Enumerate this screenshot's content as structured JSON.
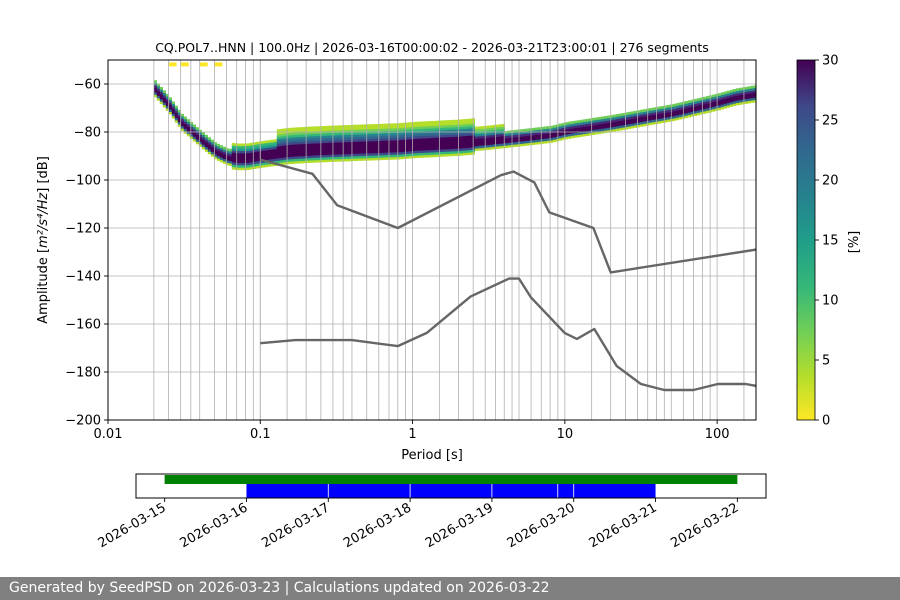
{
  "chart_data": {
    "psd": {
      "type": "heatmap",
      "title": "CQ.POL7..HNN | 100.0Hz | 2026-03-16T00:00:02 - 2026-03-21T23:00:01 | 276 segments",
      "xlabel": "Period [s]",
      "ylabel_prefix": "Amplitude [",
      "ylabel_unit": "m²/s⁴/Hz",
      "ylabel_suffix": "] [dB]",
      "xscale": "log",
      "xlim": [
        0.01,
        180
      ],
      "ylim": [
        -200,
        -50
      ],
      "x_ticks": [
        0.01,
        0.1,
        1,
        10,
        100
      ],
      "x_tick_labels": [
        "0.01",
        "0.1",
        "1",
        "10",
        "100"
      ],
      "y_ticks": [
        -200,
        -180,
        -160,
        -140,
        -120,
        -100,
        -80,
        -60
      ],
      "y_tick_labels": [
        "−200",
        "−180",
        "−160",
        "−140",
        "−120",
        "−100",
        "−80",
        "−60"
      ],
      "colorbar": {
        "label": "[%]",
        "range": [
          0,
          30
        ],
        "ticks": [
          0,
          5,
          10,
          15,
          20,
          25,
          30
        ],
        "tick_labels": [
          "0",
          "5",
          "10",
          "15",
          "20",
          "25",
          "30"
        ],
        "colors": [
          "#fde725",
          "#b5de2b",
          "#6ece58",
          "#35b779",
          "#1f9e89",
          "#26828e",
          "#31688e",
          "#3e4989",
          "#482878",
          "#440154"
        ]
      },
      "mode_curve": [
        [
          0.02,
          -63
        ],
        [
          0.025,
          -70
        ],
        [
          0.03,
          -77
        ],
        [
          0.04,
          -84
        ],
        [
          0.05,
          -89
        ],
        [
          0.06,
          -91.5
        ],
        [
          0.07,
          -92
        ],
        [
          0.08,
          -92
        ],
        [
          0.1,
          -91
        ],
        [
          0.15,
          -89.5
        ],
        [
          0.2,
          -89
        ],
        [
          0.3,
          -88.5
        ],
        [
          0.5,
          -88
        ],
        [
          0.8,
          -87.5
        ],
        [
          1,
          -87
        ],
        [
          2,
          -86
        ],
        [
          3,
          -85
        ],
        [
          5,
          -83.5
        ],
        [
          8,
          -82
        ],
        [
          10,
          -80.5
        ],
        [
          20,
          -77.5
        ],
        [
          30,
          -75.5
        ],
        [
          50,
          -73
        ],
        [
          80,
          -70
        ],
        [
          100,
          -68.5
        ],
        [
          130,
          -66.5
        ],
        [
          180,
          -65
        ]
      ],
      "nhnm": [
        [
          0.1,
          -91.5
        ],
        [
          0.22,
          -97.4
        ],
        [
          0.32,
          -110.5
        ],
        [
          0.8,
          -120
        ],
        [
          3.8,
          -98
        ],
        [
          4.6,
          -96.5
        ],
        [
          6.3,
          -101
        ],
        [
          7.9,
          -113.5
        ],
        [
          15.4,
          -120
        ],
        [
          20,
          -138.5
        ],
        [
          180,
          -129
        ]
      ],
      "nlnm": [
        [
          0.1,
          -168
        ],
        [
          0.17,
          -166.7
        ],
        [
          0.4,
          -166.7
        ],
        [
          0.8,
          -169.2
        ],
        [
          1.24,
          -163.7
        ],
        [
          2.4,
          -148.6
        ],
        [
          4.3,
          -141.1
        ],
        [
          5,
          -141.1
        ],
        [
          6,
          -149
        ],
        [
          10,
          -163.8
        ],
        [
          12,
          -166.2
        ],
        [
          15.6,
          -162.1
        ],
        [
          21.9,
          -177.5
        ],
        [
          31.6,
          -185
        ],
        [
          45,
          -187.5
        ],
        [
          70,
          -187.5
        ],
        [
          101,
          -185
        ],
        [
          154,
          -185
        ],
        [
          180,
          -185.8
        ]
      ],
      "segment_period_lines": [
        0.02,
        0.025,
        0.03,
        0.035,
        0.04,
        0.05,
        0.06,
        0.07,
        0.08,
        0.09,
        0.1,
        0.15,
        0.2,
        0.25,
        0.3,
        0.35,
        0.4,
        0.5,
        0.6,
        0.7,
        0.8,
        0.9,
        1.5,
        2,
        2.5,
        3,
        3.5,
        4,
        4.5,
        5,
        6,
        7,
        8,
        9,
        15,
        20,
        25,
        30,
        35,
        40,
        45,
        50,
        60,
        70,
        80,
        90,
        150
      ]
    },
    "timeline": {
      "type": "timeline",
      "x_ticks": [
        "2026-03-15",
        "2026-03-16",
        "2026-03-17",
        "2026-03-18",
        "2026-03-19",
        "2026-03-20",
        "2026-03-21",
        "2026-03-22"
      ],
      "xlim_days": [
        -0.35,
        7.35
      ],
      "green_bar_days": [
        0,
        7
      ],
      "blue_segments_days": [
        [
          1,
          1.995
        ],
        [
          2.005,
          2.995
        ],
        [
          3.005,
          3.995
        ],
        [
          4.005,
          4.8
        ],
        [
          4.81,
          4.995
        ],
        [
          5.005,
          6
        ]
      ],
      "colors": {
        "green": "#008000",
        "blue": "#0000ff"
      }
    }
  },
  "footer": {
    "text": "Generated by SeedPSD on 2026-03-23 | Calculations updated on 2026-03-22"
  }
}
